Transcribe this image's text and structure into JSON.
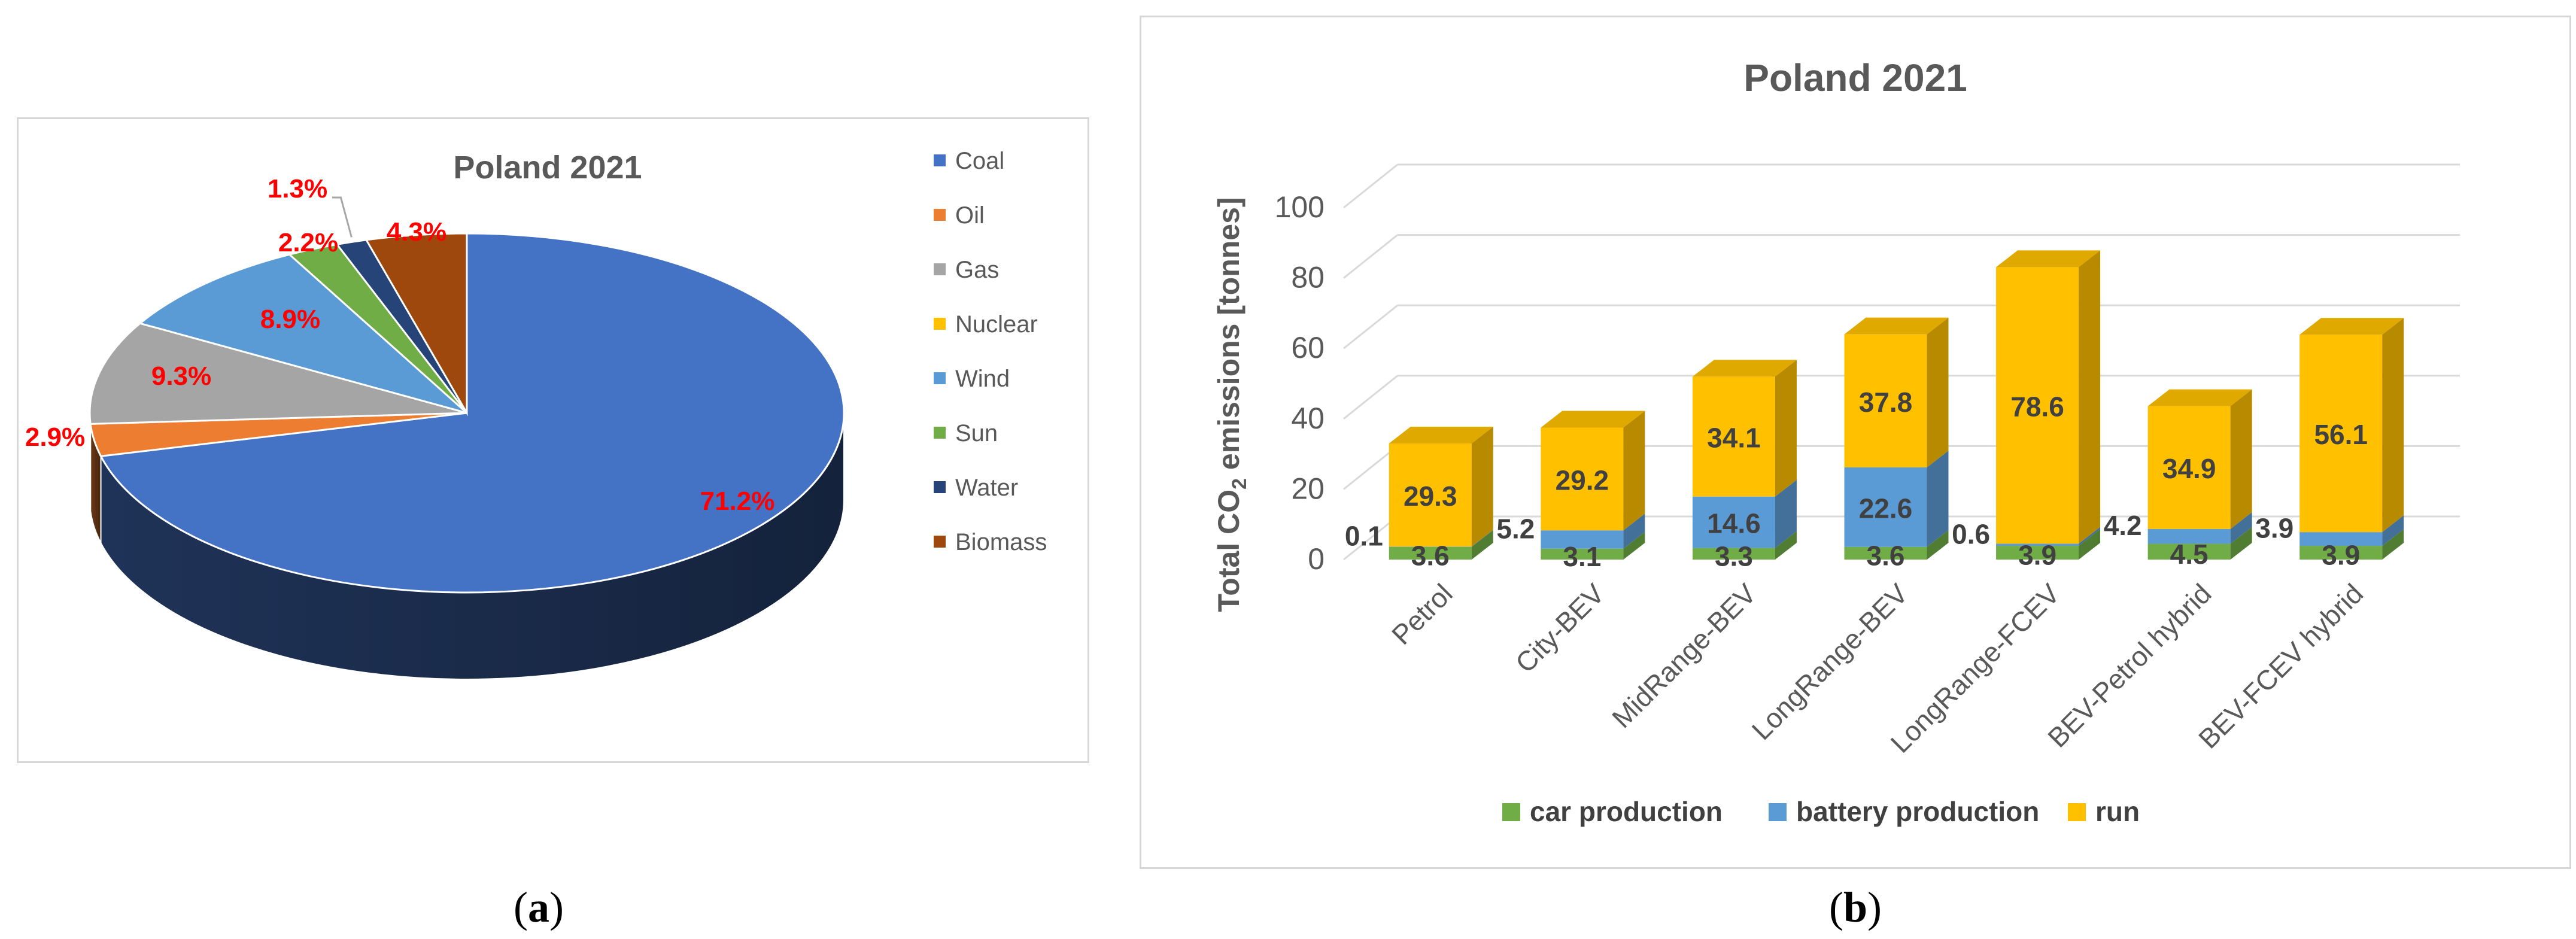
{
  "panel_a": {
    "caption": "(a)",
    "caption_bold": "a"
  },
  "panel_b": {
    "caption": "(b)",
    "caption_bold": "b"
  },
  "chart_data": [
    {
      "type": "pie",
      "title": "Poland 2021",
      "categories": [
        "Coal",
        "Oil",
        "Gas",
        "Nuclear",
        "Wind",
        "Sun",
        "Water",
        "Biomass"
      ],
      "values": [
        71.2,
        2.9,
        9.3,
        0,
        8.9,
        2.2,
        1.3,
        4.3
      ],
      "labels": [
        "71.2%",
        "2.9%",
        "9.3%",
        "",
        "8.9%",
        "2.2%",
        "1.3%",
        "4.3%"
      ],
      "colors": [
        "#4472c4",
        "#ed7d31",
        "#a5a5a5",
        "#ffc000",
        "#5b9bd5",
        "#70ad47",
        "#264478",
        "#9e480e"
      ],
      "legend_position": "right",
      "label_color": "#ff0000"
    },
    {
      "type": "bar",
      "stacked": true,
      "title": "Poland 2021",
      "ylabel": "Total CO2 emissions [tonnes]",
      "ylabel_main": "Total CO",
      "ylabel_sub": "2",
      "ylabel_rest": " emissions [tonnes]",
      "xlabel": "",
      "ylim": [
        0,
        100
      ],
      "yticks": [
        "0",
        "20",
        "40",
        "60",
        "80",
        "100"
      ],
      "categories": [
        "Petrol",
        "City-BEV",
        "MidRange-BEV",
        "LongRange-BEV",
        "LongRange-FCEV",
        "BEV-Petrol hybrid",
        "BEV-FCEV hybrid"
      ],
      "series": [
        {
          "name": "car production",
          "color": "#70ad47",
          "values": [
            3.6,
            3.1,
            3.3,
            3.6,
            3.9,
            4.5,
            3.9
          ],
          "labels": [
            "3.6",
            "3.1",
            "3.3",
            "3.6",
            "3.9",
            "4.5",
            "3.9"
          ]
        },
        {
          "name": "battery  production",
          "color": "#5b9bd5",
          "values": [
            0.1,
            5.2,
            14.6,
            22.6,
            0.6,
            4.2,
            3.9
          ],
          "labels": [
            "0.1",
            "5.2",
            "14.6",
            "22.6",
            "0.6",
            "4.2",
            "3.9"
          ]
        },
        {
          "name": "run",
          "color": "#ffc000",
          "values": [
            29.3,
            29.2,
            34.1,
            37.8,
            78.6,
            34.9,
            56.1
          ],
          "labels": [
            "29.3",
            "29.2",
            "34.1",
            "37.8",
            "78.6",
            "34.9",
            "56.1"
          ]
        }
      ],
      "legend_position": "bottom",
      "grid": true
    }
  ]
}
